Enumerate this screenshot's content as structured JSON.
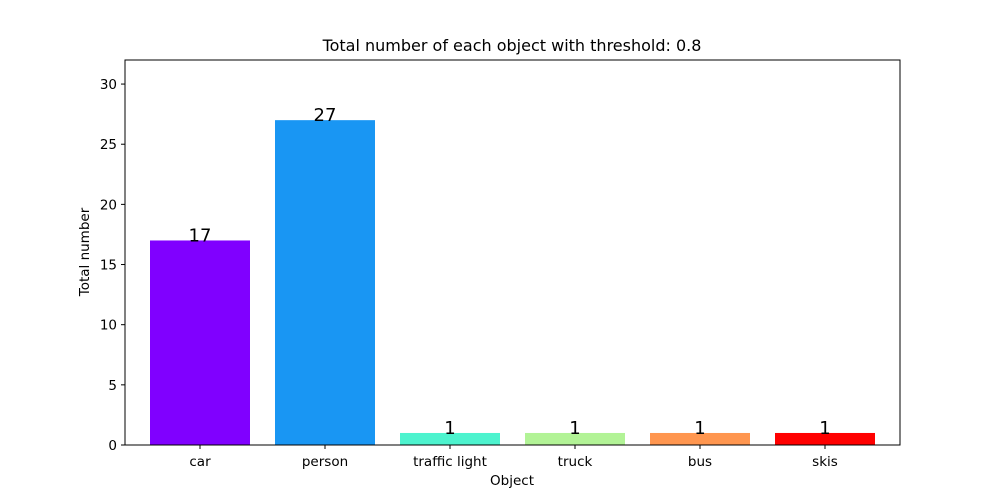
{
  "chart_data": {
    "type": "bar",
    "title": "Total number of each object with threshold: 0.8",
    "xlabel": "Object",
    "ylabel": "Total number",
    "categories": [
      "car",
      "person",
      "traffic light",
      "truck",
      "bus",
      "skis"
    ],
    "values": [
      17,
      27,
      1,
      1,
      1,
      1
    ],
    "data_labels": [
      "17",
      "27",
      "1",
      "1",
      "1",
      "1"
    ],
    "colors": [
      "#8000ff",
      "#1996f3",
      "#4df3ce",
      "#b2f396",
      "#ff964f",
      "#ff0000"
    ],
    "ylim": [
      0,
      32
    ],
    "yticks": [
      0,
      5,
      10,
      15,
      20,
      25,
      30
    ],
    "ytick_labels": [
      "0",
      "5",
      "10",
      "15",
      "20",
      "25",
      "30"
    ],
    "grid": false,
    "legend": "none"
  }
}
